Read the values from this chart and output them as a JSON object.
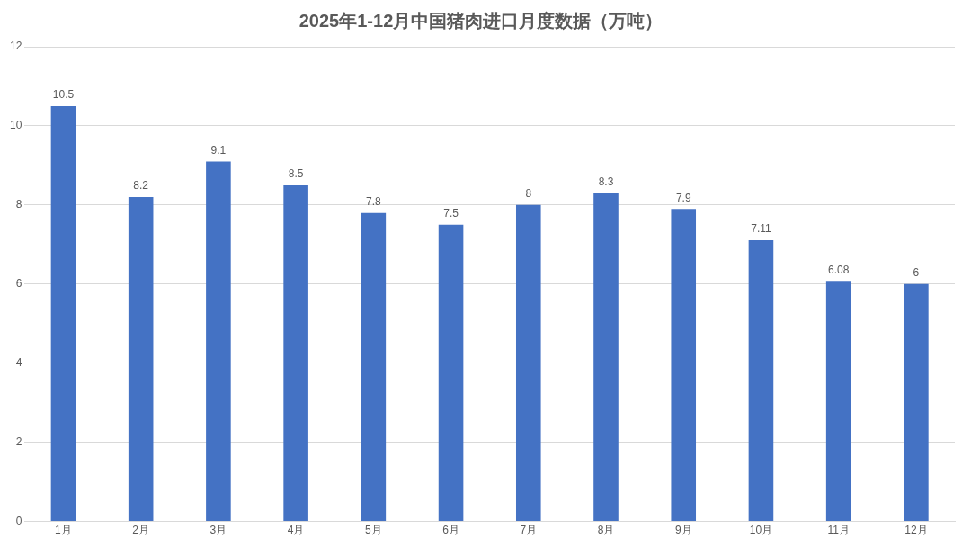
{
  "chart_data": {
    "type": "bar",
    "title": "2025年1-12月中国猪肉进口月度数据（万吨）",
    "categories": [
      "1月",
      "2月",
      "3月",
      "4月",
      "5月",
      "6月",
      "7月",
      "8月",
      "9月",
      "10月",
      "11月",
      "12月"
    ],
    "values": [
      10.5,
      8.2,
      9.1,
      8.5,
      7.8,
      7.5,
      8,
      8.3,
      7.9,
      7.11,
      6.08,
      6
    ],
    "color": "#4472c4",
    "ylim": [
      0,
      12
    ],
    "yticks": [
      0,
      2,
      4,
      6,
      8,
      10,
      12
    ],
    "grid": "y",
    "data_labels": true
  }
}
